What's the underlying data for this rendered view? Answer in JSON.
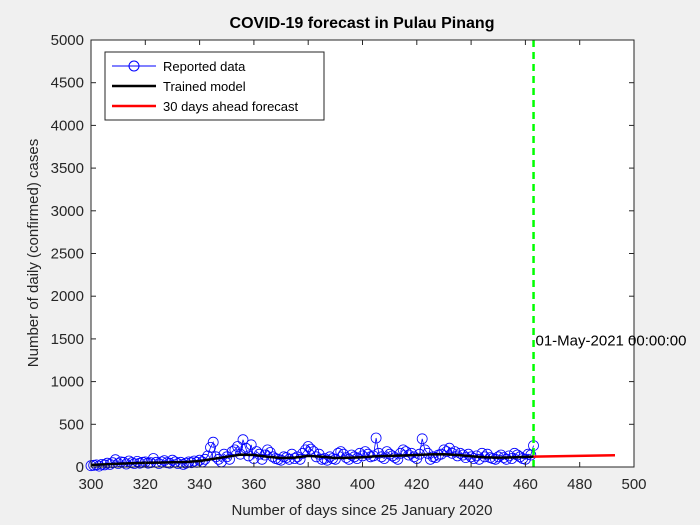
{
  "chart_data": {
    "type": "line",
    "title": "COVID-19 forecast in Pulau Pinang",
    "xlabel": "Number of days since 25 January 2020",
    "ylabel": "Number of daily (confirmed) cases",
    "xlim": [
      300,
      500
    ],
    "ylim": [
      0,
      5000
    ],
    "xticks": [
      300,
      320,
      340,
      360,
      380,
      400,
      420,
      440,
      460,
      480,
      500
    ],
    "yticks": [
      0,
      500,
      1000,
      1500,
      2000,
      2500,
      3000,
      3500,
      4000,
      4500,
      5000
    ],
    "grid": false,
    "legend_position": "top-left",
    "legend": [
      "Reported data",
      "Trained model",
      "30 days ahead forecast"
    ],
    "colors": {
      "reported": "#0000ff",
      "trained": "#000000",
      "forecast": "#ff0000",
      "marker_line": "#00ff00"
    },
    "vertical_line": {
      "x": 463,
      "label": "01-May-2021 00:00:00",
      "label_y": 1480
    },
    "series": [
      {
        "name": "Reported data",
        "style": "line-circle",
        "x": [
          300,
          301,
          302,
          303,
          304,
          305,
          306,
          307,
          308,
          309,
          310,
          311,
          312,
          313,
          314,
          315,
          316,
          317,
          318,
          319,
          320,
          321,
          322,
          323,
          324,
          325,
          326,
          327,
          328,
          329,
          330,
          331,
          332,
          333,
          334,
          335,
          336,
          337,
          338,
          339,
          340,
          341,
          342,
          343,
          344,
          345,
          346,
          347,
          348,
          349,
          350,
          351,
          352,
          353,
          354,
          355,
          356,
          357,
          358,
          359,
          360,
          361,
          362,
          363,
          364,
          365,
          366,
          367,
          368,
          369,
          370,
          371,
          372,
          373,
          374,
          375,
          376,
          377,
          378,
          379,
          380,
          381,
          382,
          383,
          384,
          385,
          386,
          387,
          388,
          389,
          390,
          391,
          392,
          393,
          394,
          395,
          396,
          397,
          398,
          399,
          400,
          401,
          402,
          403,
          404,
          405,
          406,
          407,
          408,
          409,
          410,
          411,
          412,
          413,
          414,
          415,
          416,
          417,
          418,
          419,
          420,
          421,
          422,
          423,
          424,
          425,
          426,
          427,
          428,
          429,
          430,
          431,
          432,
          433,
          434,
          435,
          436,
          437,
          438,
          439,
          440,
          441,
          442,
          443,
          444,
          445,
          446,
          447,
          448,
          449,
          450,
          451,
          452,
          453,
          454,
          455,
          456,
          457,
          458,
          459,
          460,
          461,
          462,
          463
        ],
        "y": [
          15,
          20,
          25,
          10,
          30,
          25,
          45,
          30,
          50,
          85,
          40,
          60,
          55,
          35,
          70,
          50,
          40,
          65,
          45,
          55,
          60,
          45,
          50,
          100,
          55,
          40,
          60,
          75,
          50,
          45,
          80,
          60,
          40,
          55,
          30,
          45,
          60,
          50,
          70,
          55,
          80,
          60,
          90,
          130,
          230,
          290,
          120,
          90,
          60,
          150,
          120,
          90,
          180,
          200,
          240,
          150,
          320,
          220,
          130,
          260,
          100,
          180,
          150,
          90,
          140,
          200,
          170,
          120,
          100,
          90,
          80,
          120,
          110,
          90,
          150,
          100,
          120,
          90,
          160,
          200,
          240,
          210,
          180,
          120,
          150,
          90,
          100,
          80,
          120,
          100,
          90,
          160,
          180,
          150,
          110,
          90,
          140,
          120,
          100,
          160,
          130,
          180,
          150,
          120,
          130,
          340,
          160,
          120,
          100,
          180,
          150,
          130,
          110,
          90,
          160,
          200,
          180,
          140,
          160,
          120,
          100,
          150,
          330,
          200,
          160,
          90,
          120,
          110,
          140,
          150,
          200,
          180,
          220,
          160,
          180,
          130,
          160,
          140,
          110,
          150,
          120,
          100,
          130,
          90,
          160,
          120,
          150,
          110,
          100,
          90,
          120,
          140,
          110,
          90,
          130,
          100,
          160,
          140,
          120,
          100,
          90,
          150,
          140,
          250
        ]
      },
      {
        "name": "Trained model",
        "style": "line",
        "x": [
          300,
          305,
          310,
          315,
          320,
          325,
          330,
          335,
          340,
          345,
          350,
          355,
          360,
          365,
          370,
          375,
          380,
          385,
          390,
          395,
          400,
          405,
          410,
          415,
          420,
          425,
          430,
          435,
          440,
          445,
          450,
          455,
          460,
          463
        ],
        "y": [
          25,
          30,
          38,
          45,
          50,
          52,
          55,
          58,
          70,
          95,
          120,
          145,
          140,
          120,
          105,
          110,
          130,
          120,
          105,
          108,
          115,
          125,
          130,
          135,
          140,
          148,
          150,
          140,
          125,
          115,
          110,
          112,
          118,
          122
        ]
      },
      {
        "name": "30 days ahead forecast",
        "style": "line",
        "x": [
          463,
          493
        ],
        "y": [
          122,
          138
        ]
      }
    ]
  }
}
